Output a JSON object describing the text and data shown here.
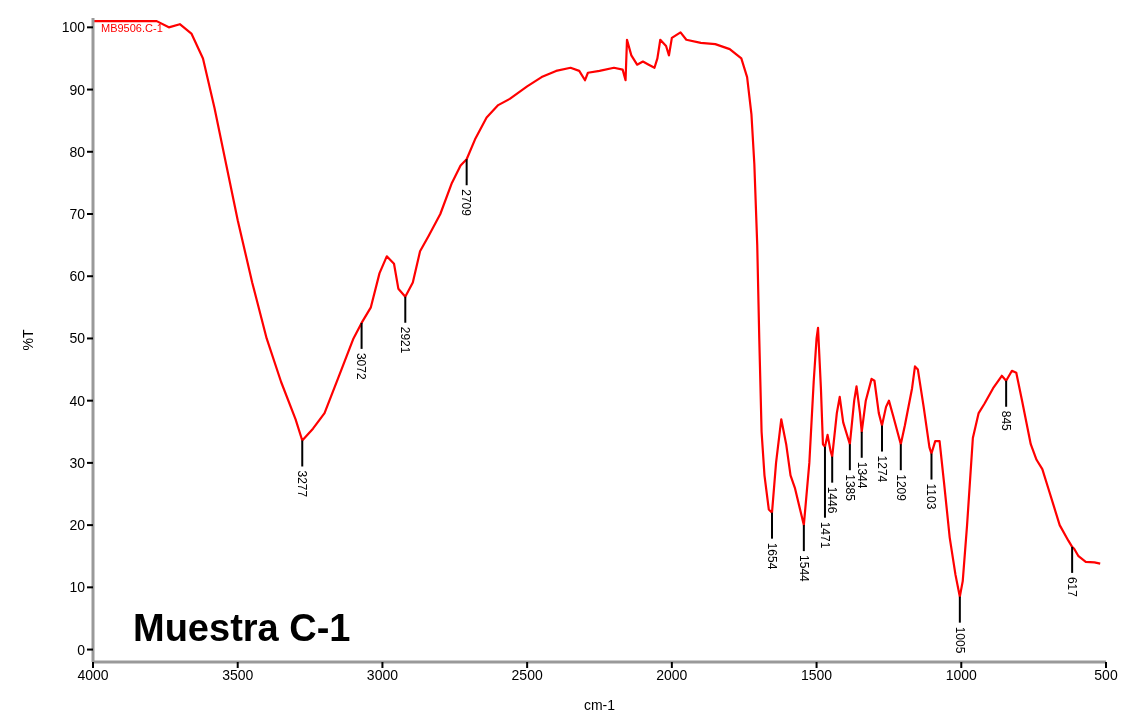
{
  "chart_data": {
    "type": "line",
    "xlabel": "cm-1",
    "ylabel": "%T",
    "xlim": [
      4000,
      500
    ],
    "xticks": [
      4000,
      3500,
      3000,
      2500,
      2000,
      1500,
      1000,
      500
    ],
    "ylim": [
      -2,
      101.5
    ],
    "yticks": [
      0,
      10,
      20,
      30,
      40,
      50,
      60,
      70,
      80,
      90,
      100
    ],
    "grid": false,
    "legend": "top left",
    "marker": "none",
    "line_style": "solid",
    "x": [
      4000,
      3780,
      3738,
      3700,
      3660,
      3620,
      3580,
      3540,
      3500,
      3450,
      3400,
      3350,
      3300,
      3277,
      3240,
      3200,
      3150,
      3100,
      3072,
      3040,
      3010,
      2985,
      2960,
      2945,
      2921,
      2895,
      2870,
      2840,
      2800,
      2760,
      2730,
      2709,
      2680,
      2640,
      2600,
      2560,
      2500,
      2450,
      2400,
      2350,
      2320,
      2300,
      2290,
      2250,
      2200,
      2170,
      2160,
      2155,
      2140,
      2120,
      2100,
      2080,
      2060,
      2050,
      2040,
      2020,
      2010,
      2000,
      1970,
      1950,
      1900,
      1850,
      1800,
      1760,
      1740,
      1725,
      1715,
      1705,
      1698,
      1690,
      1680,
      1665,
      1654,
      1640,
      1622,
      1605,
      1590,
      1575,
      1544,
      1525,
      1510,
      1500,
      1495,
      1485,
      1478,
      1471,
      1462,
      1452,
      1446,
      1430,
      1420,
      1408,
      1385,
      1370,
      1362,
      1350,
      1344,
      1330,
      1310,
      1300,
      1285,
      1274,
      1260,
      1250,
      1235,
      1209,
      1195,
      1170,
      1160,
      1150,
      1130,
      1110,
      1103,
      1090,
      1075,
      1060,
      1040,
      1020,
      1005,
      995,
      980,
      960,
      940,
      920,
      890,
      860,
      845,
      825,
      810,
      790,
      760,
      740,
      720,
      700,
      680,
      660,
      630,
      617,
      610,
      595,
      570,
      540,
      520
    ],
    "series": [
      {
        "name": "MB9506.C-1",
        "color": "#ff0000",
        "values": [
          101,
          101,
          100,
          100.5,
          99,
          95,
          87,
          78,
          69,
          59,
          50,
          43,
          37,
          33.6,
          35.5,
          38,
          44,
          50,
          52.5,
          55,
          60.5,
          63.2,
          62,
          58,
          56.7,
          59,
          64,
          66.5,
          70,
          75,
          77.8,
          78.8,
          82,
          85.5,
          87.5,
          88.5,
          90.5,
          92,
          93,
          93.5,
          93,
          91.5,
          92.7,
          93,
          93.5,
          93.2,
          91.5,
          98,
          95.5,
          94,
          94.5,
          94,
          93.5,
          95,
          98,
          97,
          95.5,
          98.3,
          99.2,
          98,
          97.5,
          97.3,
          96.5,
          95,
          92,
          86,
          78,
          65,
          50,
          35,
          28,
          22.5,
          22,
          30,
          37,
          33,
          28,
          26,
          20,
          30,
          43,
          50,
          51.7,
          42,
          33,
          32.6,
          34.5,
          32,
          31,
          38,
          40.6,
          36.5,
          33,
          40,
          42.3,
          38,
          35,
          40,
          43.5,
          43.2,
          38,
          36,
          39,
          40,
          37.5,
          33,
          36,
          42,
          45.5,
          45,
          39,
          32.5,
          31.5,
          33.5,
          33.5,
          27,
          18,
          12,
          8.5,
          11,
          20,
          34,
          38,
          39.5,
          42,
          44,
          43.2,
          44.8,
          44.5,
          40,
          33,
          30.5,
          29,
          26,
          23,
          20,
          17.5,
          16.5,
          16.2,
          15,
          14.1,
          14,
          13.8
        ]
      }
    ],
    "annotations": [
      "Muestra C-1",
      {
        "text": "3277",
        "x": 3277,
        "y": 33.6
      },
      {
        "text": "3072",
        "x": 3072,
        "y": 52.5
      },
      {
        "text": "2921",
        "x": 2921,
        "y": 56.7
      },
      {
        "text": "2709",
        "x": 2709,
        "y": 78.8
      },
      {
        "text": "1654",
        "x": 1654,
        "y": 22
      },
      {
        "text": "1544",
        "x": 1544,
        "y": 20
      },
      {
        "text": "1471",
        "x": 1471,
        "y": 32.6
      },
      {
        "text": "1446",
        "x": 1446,
        "y": 31
      },
      {
        "text": "1385",
        "x": 1385,
        "y": 33
      },
      {
        "text": "1344",
        "x": 1344,
        "y": 35
      },
      {
        "text": "1274",
        "x": 1274,
        "y": 36
      },
      {
        "text": "1209",
        "x": 1209,
        "y": 33
      },
      {
        "text": "1103",
        "x": 1103,
        "y": 31.5
      },
      {
        "text": "1005",
        "x": 1005,
        "y": 8.5
      },
      {
        "text": "845",
        "x": 845,
        "y": 43.2
      },
      {
        "text": "617",
        "x": 617,
        "y": 16.5
      }
    ]
  }
}
